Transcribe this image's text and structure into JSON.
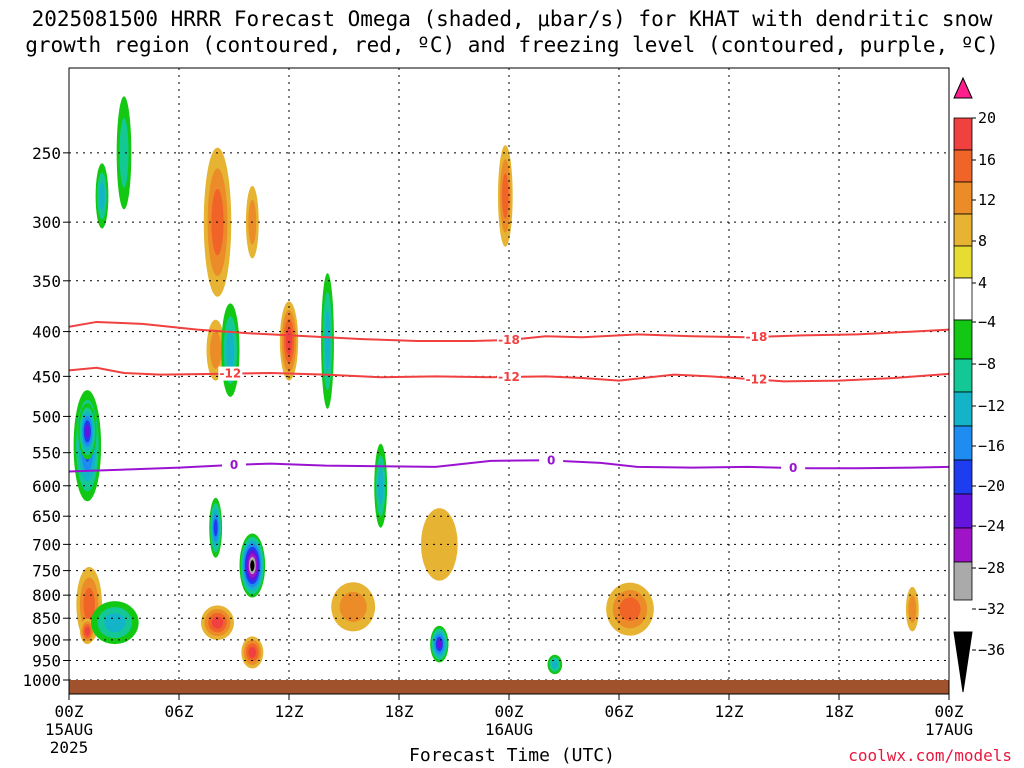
{
  "title_line1": "2025081500 HRRR Forecast Omega (shaded, μbar/s) for KHAT with dendritic snow",
  "title_line2": "growth region (contoured, red, ºC) and freezing level (contoured, purple, ºC)",
  "credit": "coolwx.com/models",
  "chart_data": {
    "type": "heatmap",
    "title": "2025081500 HRRR Forecast Omega (shaded, μbar/s) for KHAT with dendritic snow growth region (contoured, red, ºC) and freezing level (contoured, purple, ºC)",
    "xlabel": "Forecast Time (UTC)",
    "ylabel": "",
    "x_range_hours": [
      0,
      48
    ],
    "y_range_hPa": [
      1000,
      200
    ],
    "y_scale": "log",
    "grid": true,
    "x_ticks": [
      {
        "hour": 0,
        "label": "00Z",
        "sub": "15AUG",
        "sub2": "2025"
      },
      {
        "hour": 6,
        "label": "06Z"
      },
      {
        "hour": 12,
        "label": "12Z"
      },
      {
        "hour": 18,
        "label": "18Z"
      },
      {
        "hour": 24,
        "label": "00Z",
        "sub": "16AUG"
      },
      {
        "hour": 30,
        "label": "06Z"
      },
      {
        "hour": 36,
        "label": "12Z"
      },
      {
        "hour": 42,
        "label": "18Z"
      },
      {
        "hour": 48,
        "label": "00Z",
        "sub": "17AUG"
      }
    ],
    "y_ticks": [
      250,
      300,
      350,
      400,
      450,
      500,
      550,
      600,
      650,
      700,
      750,
      800,
      850,
      900,
      950,
      1000
    ],
    "colorbar": {
      "labels": [
        "20",
        "16",
        "12",
        "8",
        "4",
        "−4",
        "−8",
        "−12",
        "−16",
        "−20",
        "−24",
        "−28",
        "−32",
        "−36"
      ],
      "colors": [
        "#ff1e8c",
        "#f04040",
        "#f06428",
        "#eb8c28",
        "#e6b432",
        "#e6dc32",
        "#ffffff",
        "#12c812",
        "#14c896",
        "#14b4c8",
        "#1e8cf0",
        "#1e3cf0",
        "#6414dc",
        "#a014c8",
        "#aaaaaa",
        "#000000"
      ]
    },
    "contours": [
      {
        "name": "dendritic -18",
        "label": "-18",
        "color": "#f04040",
        "label_hours": [
          24,
          37.5
        ],
        "points": [
          [
            0,
            395
          ],
          [
            1.5,
            390
          ],
          [
            4,
            392
          ],
          [
            7,
            398
          ],
          [
            10,
            402
          ],
          [
            13,
            405
          ],
          [
            16,
            408
          ],
          [
            19,
            410
          ],
          [
            22,
            410
          ],
          [
            24,
            409
          ],
          [
            26,
            405
          ],
          [
            28,
            406
          ],
          [
            31,
            403
          ],
          [
            34,
            405
          ],
          [
            37,
            406
          ],
          [
            40,
            404
          ],
          [
            43,
            403
          ],
          [
            46,
            400
          ],
          [
            48,
            398
          ]
        ]
      },
      {
        "name": "dendritic -12",
        "label": "-12",
        "color": "#f04040",
        "label_hours": [
          8.8,
          24,
          37.5
        ],
        "points": [
          [
            0,
            443
          ],
          [
            1.5,
            440
          ],
          [
            3,
            446
          ],
          [
            5,
            448
          ],
          [
            8,
            447
          ],
          [
            11,
            446
          ],
          [
            14,
            448
          ],
          [
            17,
            451
          ],
          [
            20,
            450
          ],
          [
            23,
            451
          ],
          [
            26,
            450
          ],
          [
            28,
            452
          ],
          [
            30,
            455
          ],
          [
            33,
            448
          ],
          [
            35,
            450
          ],
          [
            37,
            453
          ],
          [
            39,
            456
          ],
          [
            42,
            455
          ],
          [
            45,
            452
          ],
          [
            48,
            447
          ]
        ]
      },
      {
        "name": "freezing level",
        "label": "0",
        "color": "#9b13d0",
        "label_hours": [
          9,
          26.3,
          39.5
        ],
        "points": [
          [
            0,
            578
          ],
          [
            3,
            575
          ],
          [
            6,
            572
          ],
          [
            9,
            568
          ],
          [
            11,
            566
          ],
          [
            14,
            569
          ],
          [
            17,
            570
          ],
          [
            20,
            571
          ],
          [
            23,
            562
          ],
          [
            26,
            561
          ],
          [
            29,
            565
          ],
          [
            31,
            571
          ],
          [
            34,
            572
          ],
          [
            37,
            571
          ],
          [
            40,
            573
          ],
          [
            43,
            573
          ],
          [
            46,
            572
          ],
          [
            48,
            571
          ]
        ]
      }
    ],
    "omega_cells": [
      {
        "t": 1.0,
        "p": 540,
        "rt": 0.75,
        "rp": 85,
        "v": -22
      },
      {
        "t": 1.0,
        "p": 520,
        "rt": 0.5,
        "rp": 40,
        "v": -24
      },
      {
        "t": 1.1,
        "p": 820,
        "rt": 0.7,
        "rp": 85,
        "v": 14
      },
      {
        "t": 1.0,
        "p": 880,
        "rt": 0.4,
        "rp": 30,
        "v": 16
      },
      {
        "t": 1.8,
        "p": 280,
        "rt": 0.35,
        "rp": 25,
        "v": -12
      },
      {
        "t": 2.5,
        "p": 860,
        "rt": 1.3,
        "rp": 50,
        "v": -12
      },
      {
        "t": 3.0,
        "p": 250,
        "rt": 0.4,
        "rp": 40,
        "v": -8
      },
      {
        "t": 8.1,
        "p": 300,
        "rt": 0.75,
        "rp": 65,
        "v": 14
      },
      {
        "t": 8.0,
        "p": 420,
        "rt": 0.5,
        "rp": 35,
        "v": 8
      },
      {
        "t": 8.1,
        "p": 860,
        "rt": 0.9,
        "rp": 40,
        "v": 16
      },
      {
        "t": 8.0,
        "p": 670,
        "rt": 0.35,
        "rp": 55,
        "v": -20
      },
      {
        "t": 8.8,
        "p": 420,
        "rt": 0.5,
        "rp": 55,
        "v": -12
      },
      {
        "t": 10.0,
        "p": 740,
        "rt": 0.7,
        "rp": 65,
        "v": -36
      },
      {
        "t": 10.0,
        "p": 930,
        "rt": 0.6,
        "rp": 40,
        "v": 16
      },
      {
        "t": 10.0,
        "p": 300,
        "rt": 0.35,
        "rp": 30,
        "v": 8
      },
      {
        "t": 12.0,
        "p": 410,
        "rt": 0.5,
        "rp": 45,
        "v": 16
      },
      {
        "t": 14.1,
        "p": 410,
        "rt": 0.35,
        "rp": 80,
        "v": -12
      },
      {
        "t": 15.5,
        "p": 825,
        "rt": 1.2,
        "rp": 55,
        "v": 10
      },
      {
        "t": 17.0,
        "p": 600,
        "rt": 0.35,
        "rp": 70,
        "v": -14
      },
      {
        "t": 20.2,
        "p": 910,
        "rt": 0.5,
        "rp": 45,
        "v": -26
      },
      {
        "t": 20.2,
        "p": 700,
        "rt": 1.0,
        "rp": 70,
        "v": 6
      },
      {
        "t": 23.8,
        "p": 280,
        "rt": 0.4,
        "rp": 40,
        "v": 12
      },
      {
        "t": 26.5,
        "p": 960,
        "rt": 0.4,
        "rp": 25,
        "v": -14
      },
      {
        "t": 30.6,
        "p": 830,
        "rt": 1.3,
        "rp": 60,
        "v": 12
      },
      {
        "t": 46.0,
        "p": 830,
        "rt": 0.35,
        "rp": 50,
        "v": 10
      }
    ]
  }
}
